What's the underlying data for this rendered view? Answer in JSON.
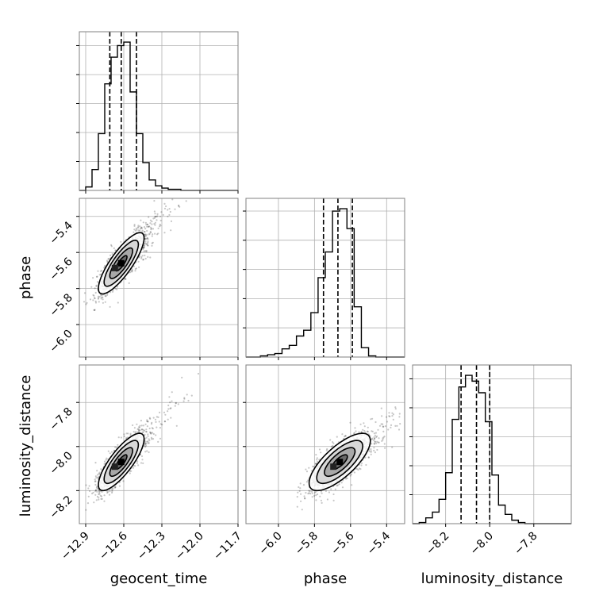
{
  "chart_data": {
    "type": "corner",
    "parameters": [
      "geocent_time",
      "phase",
      "luminosity_distance"
    ],
    "grid": true,
    "ranges": {
      "geocent_time": [
        -12.95,
        -11.7
      ],
      "phase": [
        -6.18,
        -5.3
      ],
      "luminosity_distance": [
        -8.35,
        -7.63
      ]
    },
    "ticks": {
      "geocent_time": [
        -12.9,
        -12.6,
        -12.3,
        -12.0,
        -11.7
      ],
      "phase": [
        -6.0,
        -5.8,
        -5.6,
        -5.4
      ],
      "luminosity_distance": [
        -8.2,
        -8.0,
        -7.8
      ]
    },
    "tick_labels": {
      "geocent_time": [
        "−12.9",
        "−12.6",
        "−12.3",
        "−12.0",
        "−11.7"
      ],
      "phase": [
        "−6.0",
        "−5.8",
        "−5.6",
        "−5.4"
      ],
      "luminosity_distance": [
        "−8.2",
        "−8.0",
        "−7.8"
      ]
    },
    "quantiles": {
      "geocent_time": [
        -12.71,
        -12.62,
        -12.5
      ],
      "phase": [
        -5.75,
        -5.67,
        -5.59
      ],
      "luminosity_distance": [
        -8.13,
        -8.06,
        -8.0
      ]
    },
    "marginals": {
      "geocent_time": {
        "bin_edges": [
          -12.95,
          -12.9,
          -12.85,
          -12.8,
          -12.75,
          -12.7,
          -12.65,
          -12.6,
          -12.55,
          -12.5,
          -12.45,
          -12.4,
          -12.35,
          -12.3,
          -12.25,
          -12.2,
          -12.15,
          -12.1,
          -12.05,
          -12.0,
          -11.95,
          -11.9,
          -11.85,
          -11.8,
          -11.75,
          -11.7
        ],
        "counts": [
          0,
          3,
          18,
          49,
          92,
          115,
          125,
          128,
          85,
          49,
          24,
          9,
          4,
          2,
          1,
          1,
          0,
          0,
          0,
          0,
          0,
          0,
          0,
          0,
          0
        ]
      },
      "phase": {
        "bin_edges": [
          -6.18,
          -6.14,
          -6.1,
          -6.06,
          -6.02,
          -5.98,
          -5.94,
          -5.9,
          -5.86,
          -5.82,
          -5.78,
          -5.74,
          -5.7,
          -5.66,
          -5.62,
          -5.58,
          -5.54,
          -5.5,
          -5.46,
          -5.42,
          -5.38,
          -5.34,
          -5.3
        ],
        "counts": [
          0,
          0,
          1,
          2,
          3,
          7,
          10,
          18,
          23,
          38,
          68,
          90,
          125,
          127,
          110,
          43,
          8,
          1,
          0,
          0,
          0,
          0
        ]
      },
      "luminosity_distance": {
        "bin_edges": [
          -8.35,
          -8.32,
          -8.29,
          -8.26,
          -8.23,
          -8.2,
          -8.17,
          -8.14,
          -8.11,
          -8.08,
          -8.05,
          -8.02,
          -7.99,
          -7.96,
          -7.93,
          -7.9,
          -7.87,
          -7.84,
          -7.81,
          -7.78,
          -7.75,
          -7.72,
          -7.69,
          -7.66,
          -7.63
        ],
        "counts": [
          0,
          1,
          5,
          10,
          21,
          44,
          90,
          118,
          128,
          123,
          113,
          88,
          42,
          16,
          8,
          3,
          1,
          0,
          0,
          0,
          0,
          0,
          0,
          0
        ]
      }
    },
    "joint": [
      {
        "x": "geocent_time",
        "y": "phase",
        "center": [
          -12.62,
          -5.66
        ],
        "sigma": [
          0.09,
          0.085
        ],
        "rho": 0.82
      },
      {
        "x": "geocent_time",
        "y": "luminosity_distance",
        "center": [
          -12.62,
          -8.07
        ],
        "sigma": [
          0.09,
          0.065
        ],
        "rho": 0.8
      },
      {
        "x": "phase",
        "y": "luminosity_distance",
        "center": [
          -5.66,
          -8.07
        ],
        "sigma": [
          0.085,
          0.065
        ],
        "rho": 0.74
      }
    ],
    "contour_levels_sigma": [
      0.5,
      1.0,
      1.5,
      2.0
    ]
  }
}
